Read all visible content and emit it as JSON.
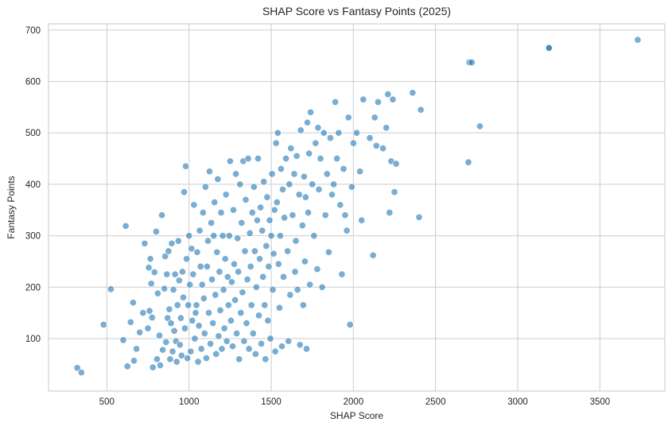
{
  "chart_data": {
    "type": "scatter",
    "title": "SHAP Score vs Fantasy Points (2025)",
    "xlabel": "SHAP Score",
    "ylabel": "Fantasy Points",
    "xlim": [
      145,
      3895
    ],
    "ylim": [
      -2,
      712
    ],
    "xticks": [
      500,
      1000,
      1500,
      2000,
      2500,
      3000,
      3500
    ],
    "yticks": [
      100,
      200,
      300,
      400,
      500,
      600,
      700
    ],
    "grid": true,
    "legend": null,
    "point_color": "#1f77b4",
    "point_alpha": 0.6,
    "points": [
      [
        320,
        43
      ],
      [
        345,
        34
      ],
      [
        480,
        127
      ],
      [
        525,
        196
      ],
      [
        600,
        97
      ],
      [
        615,
        319
      ],
      [
        625,
        46
      ],
      [
        645,
        132
      ],
      [
        660,
        170
      ],
      [
        665,
        57
      ],
      [
        680,
        80
      ],
      [
        700,
        112
      ],
      [
        720,
        150
      ],
      [
        730,
        285
      ],
      [
        750,
        120
      ],
      [
        755,
        238
      ],
      [
        760,
        154
      ],
      [
        765,
        255
      ],
      [
        770,
        207
      ],
      [
        775,
        141
      ],
      [
        780,
        44
      ],
      [
        790,
        229
      ],
      [
        800,
        308
      ],
      [
        805,
        60
      ],
      [
        810,
        188
      ],
      [
        820,
        106
      ],
      [
        825,
        48
      ],
      [
        835,
        340
      ],
      [
        840,
        78
      ],
      [
        850,
        197
      ],
      [
        855,
        260
      ],
      [
        860,
        93
      ],
      [
        865,
        225
      ],
      [
        870,
        140
      ],
      [
        875,
        270
      ],
      [
        880,
        157
      ],
      [
        885,
        60
      ],
      [
        890,
        130
      ],
      [
        895,
        285
      ],
      [
        900,
        75
      ],
      [
        905,
        195
      ],
      [
        910,
        115
      ],
      [
        915,
        225
      ],
      [
        920,
        95
      ],
      [
        925,
        55
      ],
      [
        930,
        165
      ],
      [
        935,
        290
      ],
      [
        940,
        213
      ],
      [
        945,
        88
      ],
      [
        950,
        140
      ],
      [
        955,
        67
      ],
      [
        960,
        230
      ],
      [
        965,
        180
      ],
      [
        970,
        385
      ],
      [
        975,
        120
      ],
      [
        980,
        435
      ],
      [
        985,
        255
      ],
      [
        990,
        62
      ],
      [
        995,
        165
      ],
      [
        1000,
        300
      ],
      [
        1005,
        205
      ],
      [
        1010,
        75
      ],
      [
        1015,
        275
      ],
      [
        1020,
        135
      ],
      [
        1025,
        225
      ],
      [
        1030,
        360
      ],
      [
        1035,
        100
      ],
      [
        1040,
        150
      ],
      [
        1045,
        165
      ],
      [
        1050,
        268
      ],
      [
        1055,
        55
      ],
      [
        1060,
        125
      ],
      [
        1065,
        310
      ],
      [
        1070,
        240
      ],
      [
        1075,
        80
      ],
      [
        1080,
        205
      ],
      [
        1085,
        345
      ],
      [
        1090,
        178
      ],
      [
        1095,
        110
      ],
      [
        1100,
        395
      ],
      [
        1105,
        62
      ],
      [
        1110,
        240
      ],
      [
        1115,
        290
      ],
      [
        1120,
        150
      ],
      [
        1125,
        425
      ],
      [
        1130,
        90
      ],
      [
        1135,
        325
      ],
      [
        1140,
        215
      ],
      [
        1145,
        130
      ],
      [
        1150,
        300
      ],
      [
        1155,
        365
      ],
      [
        1160,
        185
      ],
      [
        1165,
        70
      ],
      [
        1170,
        268
      ],
      [
        1175,
        410
      ],
      [
        1180,
        105
      ],
      [
        1185,
        230
      ],
      [
        1190,
        155
      ],
      [
        1195,
        345
      ],
      [
        1200,
        80
      ],
      [
        1205,
        300
      ],
      [
        1210,
        195
      ],
      [
        1215,
        120
      ],
      [
        1220,
        255
      ],
      [
        1225,
        380
      ],
      [
        1230,
        95
      ],
      [
        1235,
        220
      ],
      [
        1240,
        165
      ],
      [
        1245,
        300
      ],
      [
        1250,
        445
      ],
      [
        1255,
        135
      ],
      [
        1260,
        210
      ],
      [
        1265,
        85
      ],
      [
        1270,
        350
      ],
      [
        1275,
        245
      ],
      [
        1280,
        175
      ],
      [
        1285,
        420
      ],
      [
        1290,
        110
      ],
      [
        1295,
        295
      ],
      [
        1300,
        230
      ],
      [
        1305,
        60
      ],
      [
        1310,
        400
      ],
      [
        1315,
        150
      ],
      [
        1320,
        325
      ],
      [
        1325,
        190
      ],
      [
        1330,
        445
      ],
      [
        1335,
        95
      ],
      [
        1340,
        270
      ],
      [
        1345,
        370
      ],
      [
        1350,
        130
      ],
      [
        1355,
        215
      ],
      [
        1360,
        450
      ],
      [
        1365,
        80
      ],
      [
        1370,
        305
      ],
      [
        1375,
        240
      ],
      [
        1380,
        165
      ],
      [
        1385,
        345
      ],
      [
        1390,
        110
      ],
      [
        1395,
        395
      ],
      [
        1400,
        270
      ],
      [
        1405,
        70
      ],
      [
        1410,
        200
      ],
      [
        1415,
        330
      ],
      [
        1420,
        450
      ],
      [
        1425,
        145
      ],
      [
        1430,
        255
      ],
      [
        1435,
        355
      ],
      [
        1440,
        90
      ],
      [
        1445,
        310
      ],
      [
        1450,
        220
      ],
      [
        1455,
        405
      ],
      [
        1460,
        165
      ],
      [
        1465,
        60
      ],
      [
        1470,
        280
      ],
      [
        1475,
        375
      ],
      [
        1480,
        135
      ],
      [
        1485,
        240
      ],
      [
        1490,
        330
      ],
      [
        1495,
        100
      ],
      [
        1500,
        300
      ],
      [
        1505,
        420
      ],
      [
        1510,
        195
      ],
      [
        1515,
        265
      ],
      [
        1520,
        350
      ],
      [
        1525,
        75
      ],
      [
        1530,
        480
      ],
      [
        1535,
        365
      ],
      [
        1540,
        500
      ],
      [
        1545,
        245
      ],
      [
        1550,
        160
      ],
      [
        1555,
        300
      ],
      [
        1560,
        430
      ],
      [
        1565,
        85
      ],
      [
        1570,
        390
      ],
      [
        1575,
        220
      ],
      [
        1580,
        335
      ],
      [
        1590,
        450
      ],
      [
        1600,
        270
      ],
      [
        1605,
        95
      ],
      [
        1610,
        400
      ],
      [
        1615,
        185
      ],
      [
        1620,
        470
      ],
      [
        1630,
        340
      ],
      [
        1640,
        420
      ],
      [
        1645,
        230
      ],
      [
        1650,
        290
      ],
      [
        1655,
        455
      ],
      [
        1660,
        195
      ],
      [
        1670,
        380
      ],
      [
        1675,
        88
      ],
      [
        1680,
        505
      ],
      [
        1690,
        320
      ],
      [
        1695,
        165
      ],
      [
        1700,
        415
      ],
      [
        1705,
        250
      ],
      [
        1710,
        375
      ],
      [
        1715,
        80
      ],
      [
        1720,
        520
      ],
      [
        1725,
        345
      ],
      [
        1730,
        460
      ],
      [
        1735,
        205
      ],
      [
        1740,
        540
      ],
      [
        1750,
        400
      ],
      [
        1760,
        300
      ],
      [
        1770,
        480
      ],
      [
        1780,
        235
      ],
      [
        1785,
        510
      ],
      [
        1790,
        390
      ],
      [
        1800,
        450
      ],
      [
        1810,
        200
      ],
      [
        1820,
        500
      ],
      [
        1830,
        340
      ],
      [
        1840,
        420
      ],
      [
        1850,
        268
      ],
      [
        1860,
        490
      ],
      [
        1870,
        380
      ],
      [
        1880,
        400
      ],
      [
        1890,
        560
      ],
      [
        1900,
        450
      ],
      [
        1910,
        500
      ],
      [
        1920,
        360
      ],
      [
        1930,
        225
      ],
      [
        1940,
        430
      ],
      [
        1950,
        340
      ],
      [
        1960,
        310
      ],
      [
        1970,
        530
      ],
      [
        1980,
        127
      ],
      [
        1990,
        395
      ],
      [
        2000,
        480
      ],
      [
        2020,
        500
      ],
      [
        2040,
        425
      ],
      [
        2050,
        330
      ],
      [
        2060,
        565
      ],
      [
        2100,
        490
      ],
      [
        2120,
        262
      ],
      [
        2130,
        530
      ],
      [
        2140,
        475
      ],
      [
        2150,
        560
      ],
      [
        2180,
        470
      ],
      [
        2200,
        510
      ],
      [
        2210,
        575
      ],
      [
        2220,
        345
      ],
      [
        2230,
        445
      ],
      [
        2240,
        565
      ],
      [
        2250,
        385
      ],
      [
        2260,
        440
      ],
      [
        2360,
        578
      ],
      [
        2400,
        336
      ],
      [
        2410,
        545
      ],
      [
        2700,
        443
      ],
      [
        2705,
        637
      ],
      [
        2720,
        637
      ],
      [
        2770,
        513
      ],
      [
        3190,
        666
      ],
      [
        3190,
        665
      ],
      [
        3730,
        681
      ]
    ]
  }
}
